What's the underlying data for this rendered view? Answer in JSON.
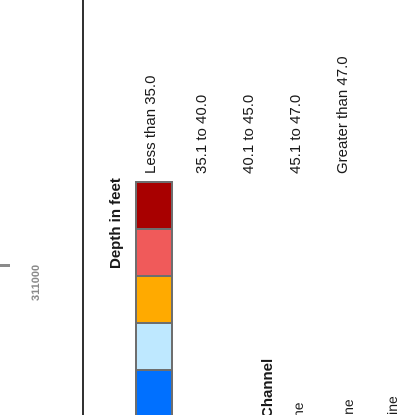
{
  "coordinate_label": "311000",
  "depth_legend": {
    "title": "Depth in feet",
    "classes": [
      {
        "label": "Less than 35.0",
        "color": "#a80000"
      },
      {
        "label": "35.1 to 40.0",
        "color": "#f05a5a"
      },
      {
        "label": "40.1 to 45.0",
        "color": "#ffaa00"
      },
      {
        "label": "45.1 to 47.0",
        "color": "#bee8ff"
      },
      {
        "label": "Greater than 47.0",
        "color": "#0070ff"
      }
    ]
  },
  "channel_legend": {
    "title": "Channel",
    "items": [
      {
        "label": "ne"
      },
      {
        "label": "ine"
      },
      {
        "label": "line"
      }
    ]
  }
}
